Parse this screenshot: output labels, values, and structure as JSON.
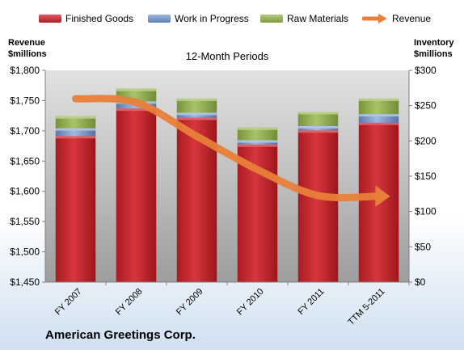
{
  "legend": {
    "finished": "Finished Goods",
    "wip": "Work in Progress",
    "raw": "Raw Materials",
    "revenue": "Revenue"
  },
  "left_title": [
    "Revenue",
    "$millions"
  ],
  "right_title": [
    "Inventory",
    "$millions"
  ],
  "subtitle": "12-Month Periods",
  "company": "American Greetings Corp.",
  "colors": {
    "finished": "#c0272d",
    "wip": "#6f8fc4",
    "raw": "#8eab4e",
    "revenue": "#e8803a",
    "plot_bg_top": "#e2e2e2",
    "plot_bg_bottom": "#9e9e9e"
  },
  "chart_data": {
    "type": "bar",
    "stacked": true,
    "categories": [
      "FY 2007",
      "FY 2008",
      "FY 2009",
      "FY 2010",
      "FY 2011",
      "TTM 5-2011"
    ],
    "series": [
      {
        "name": "Finished Goods",
        "axis": "right",
        "values": [
          207,
          246,
          233,
          195,
          215,
          226
        ]
      },
      {
        "name": "Work in Progress",
        "axis": "right",
        "values": [
          11,
          10,
          7,
          6,
          6,
          12
        ]
      },
      {
        "name": "Raw Materials",
        "axis": "right",
        "values": [
          17,
          18,
          20,
          18,
          20,
          22
        ]
      },
      {
        "name": "Revenue",
        "type": "line",
        "axis": "left",
        "values": [
          1753,
          1747,
          1691,
          1636,
          1593,
          1592
        ]
      }
    ],
    "left_axis": {
      "ylim": [
        1450,
        1800
      ],
      "ticks": [
        "$1,450",
        "$1,500",
        "$1,550",
        "$1,600",
        "$1,650",
        "$1,700",
        "$1,750",
        "$1,800"
      ]
    },
    "right_axis": {
      "ylim": [
        0,
        300
      ],
      "ticks": [
        "$0",
        "$50",
        "$100",
        "$150",
        "$200",
        "$250",
        "$300"
      ]
    },
    "grid": false,
    "legend_position": "top"
  }
}
